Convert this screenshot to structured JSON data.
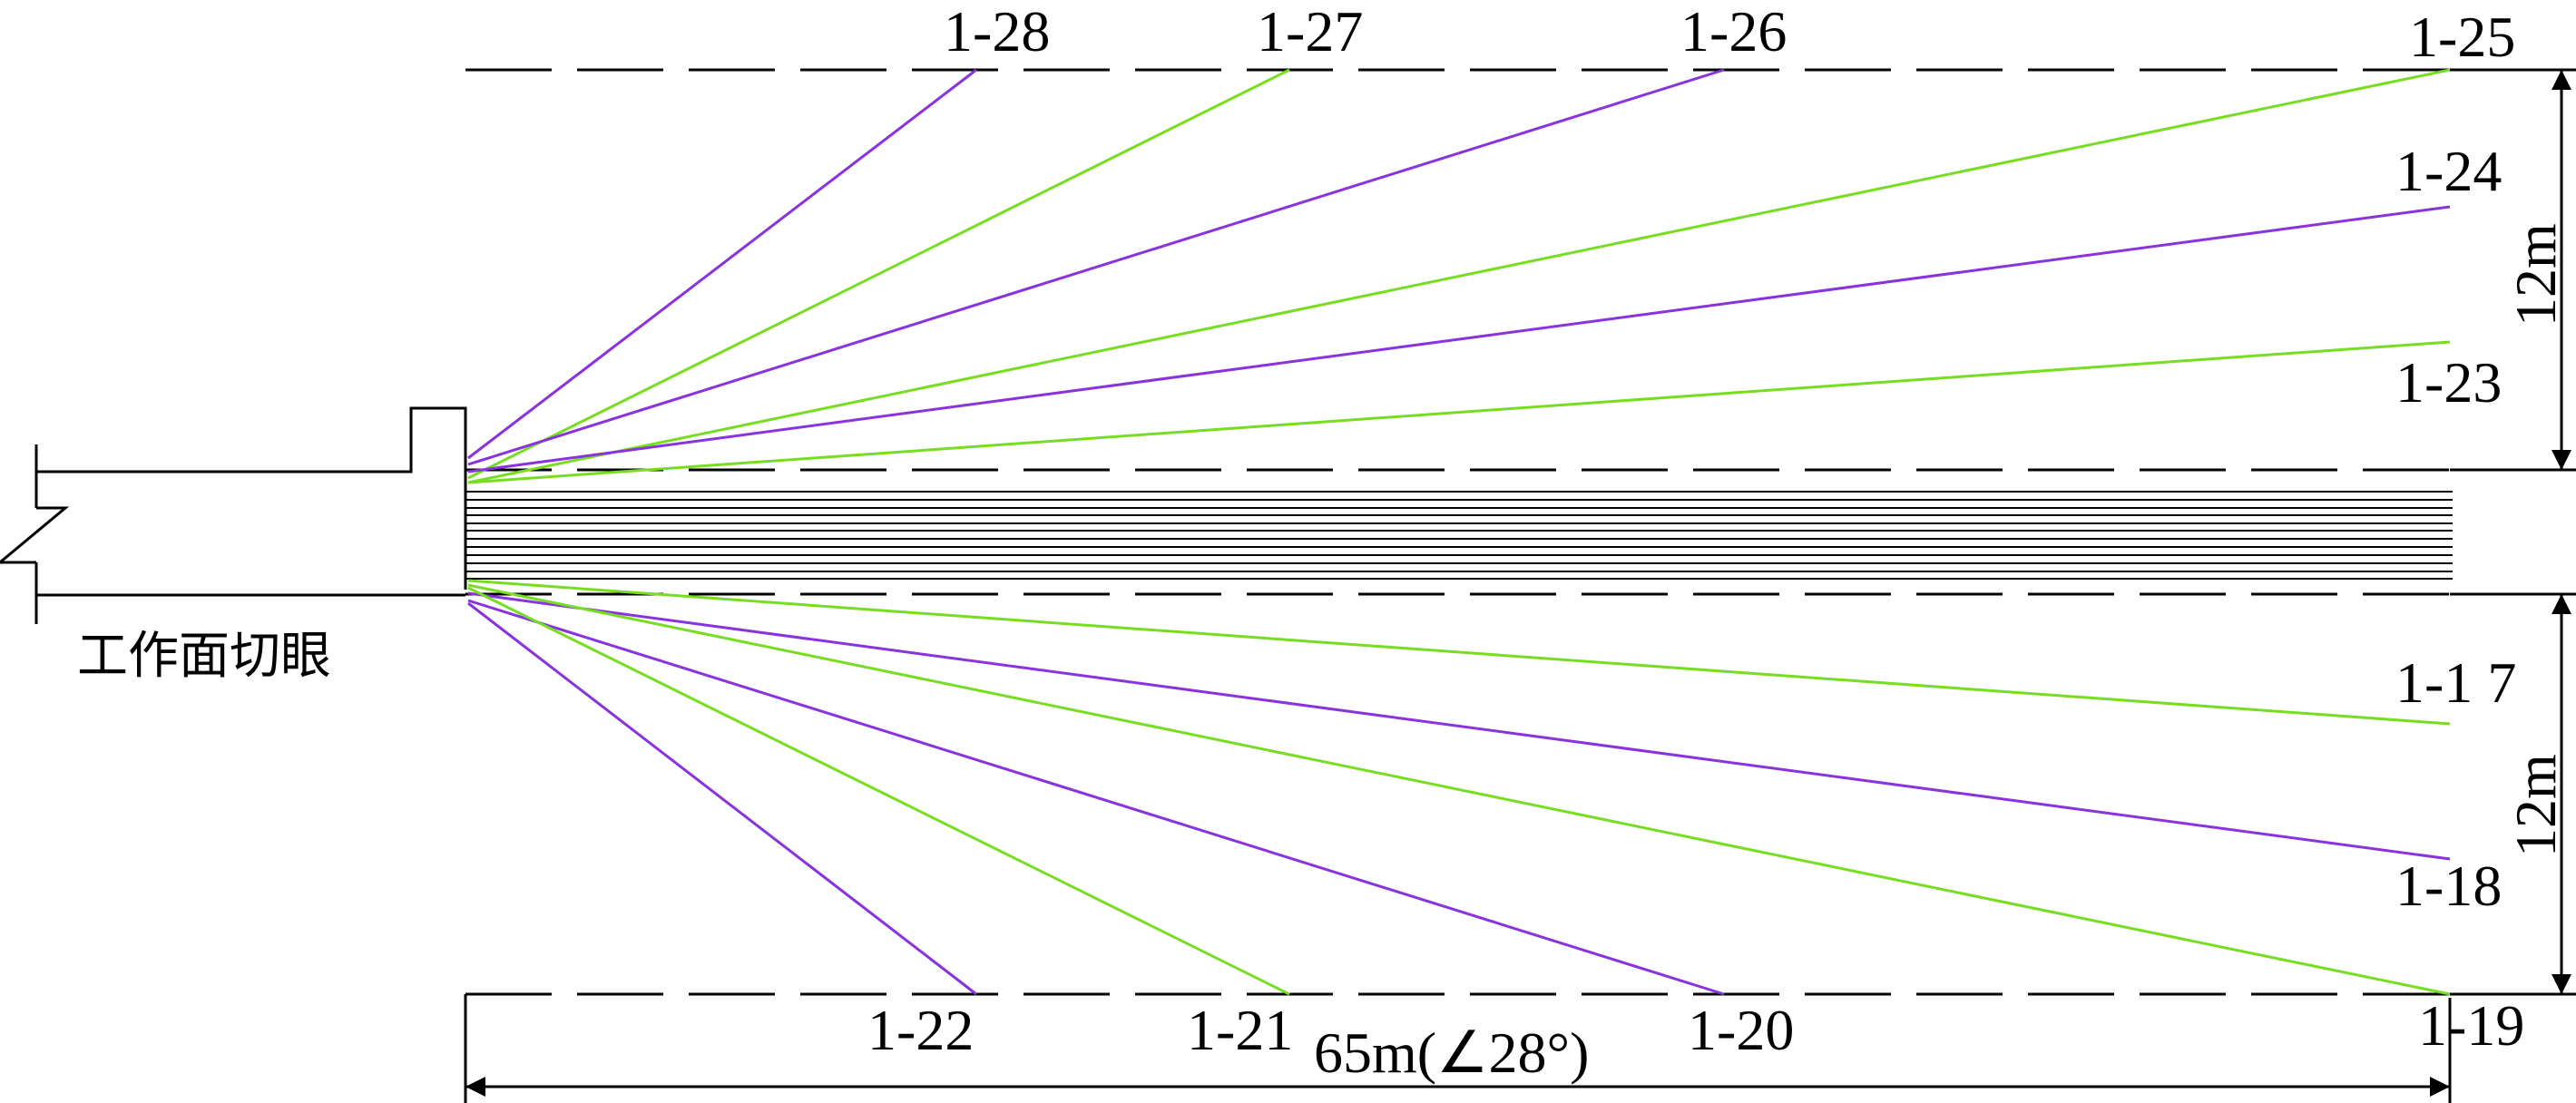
{
  "diagram": {
    "caption": "工作面切眼",
    "dimension_total": "65m(∠28°)",
    "dimension_upper": "12m",
    "dimension_lower": "12m",
    "colors": {
      "purple": "#8833dd",
      "green": "#77dd22",
      "line": "#000000"
    },
    "drill_holes_upper": [
      {
        "label": "1-28",
        "color": "purple"
      },
      {
        "label": "1-27",
        "color": "green"
      },
      {
        "label": "1-26",
        "color": "purple"
      },
      {
        "label": "1-25",
        "color": "green"
      },
      {
        "label": "1-24",
        "color": "purple"
      },
      {
        "label": "1-23",
        "color": "green"
      }
    ],
    "drill_holes_lower": [
      {
        "label": "1-1 7",
        "color": "green"
      },
      {
        "label": "1-18",
        "color": "purple"
      },
      {
        "label": "1-19",
        "color": "green"
      },
      {
        "label": "1-20",
        "color": "purple"
      },
      {
        "label": "1-21",
        "color": "green"
      },
      {
        "label": "1-22",
        "color": "purple"
      }
    ]
  }
}
